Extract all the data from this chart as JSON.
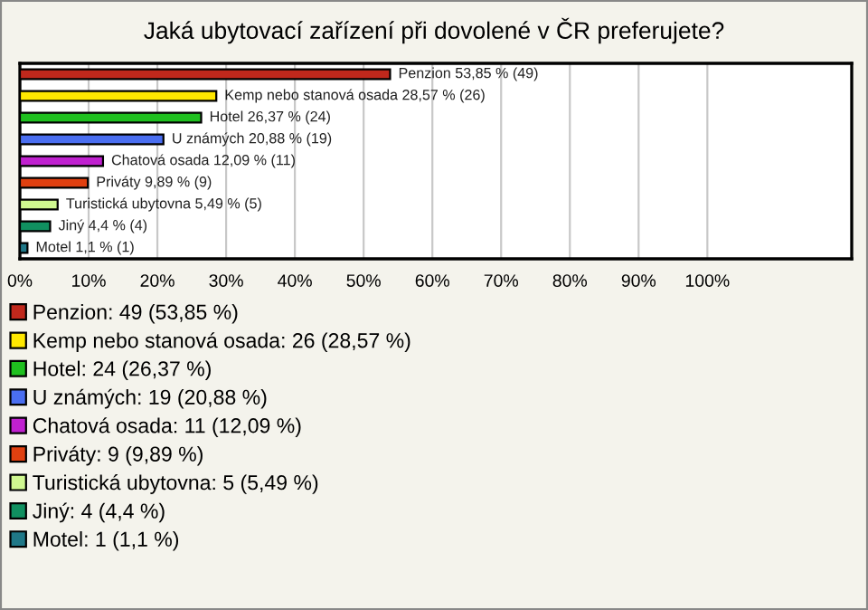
{
  "chart_data": {
    "type": "bar",
    "orientation": "horizontal",
    "title": "Jaká ubytovací zařízení při dovolené v ČR preferujete?",
    "categories": [
      null,
      null,
      null,
      null,
      null,
      null,
      null,
      null,
      null
    ],
    "series": [
      {
        "name": "Penzion: 49 (53,85 %)",
        "color": "#c0281c",
        "values": [
          53.85,
          null,
          null,
          null,
          null,
          null,
          null,
          null,
          null
        ],
        "value_labels": [
          "Penzion 53,85 % (49)",
          null,
          null,
          null,
          null,
          null,
          null,
          null,
          null
        ]
      },
      {
        "name": "Kemp nebo stanová osada: 26 (28,57 %)",
        "color": "#ffe800",
        "values": [
          null,
          28.57,
          null,
          null,
          null,
          null,
          null,
          null,
          null
        ],
        "value_labels": [
          null,
          "Kemp nebo stanová osada 28,57 % (26)",
          null,
          null,
          null,
          null,
          null,
          null,
          null
        ]
      },
      {
        "name": "Hotel: 24 (26,37 %)",
        "color": "#1fc01f",
        "values": [
          null,
          null,
          26.37,
          null,
          null,
          null,
          null,
          null,
          null
        ],
        "value_labels": [
          null,
          null,
          "Hotel 26,37 % (24)",
          null,
          null,
          null,
          null,
          null,
          null
        ]
      },
      {
        "name": "U známých: 19 (20,88 %)",
        "color": "#4a6ef0",
        "values": [
          null,
          null,
          null,
          20.88,
          null,
          null,
          null,
          null,
          null
        ],
        "value_labels": [
          null,
          null,
          null,
          "U známých 20,88 % (19)",
          null,
          null,
          null,
          null,
          null
        ]
      },
      {
        "name": "Chatová osada: 11 (12,09 %)",
        "color": "#c020d0",
        "values": [
          null,
          null,
          null,
          null,
          12.09,
          null,
          null,
          null,
          null
        ],
        "value_labels": [
          null,
          null,
          null,
          null,
          "Chatová osada 12,09 % (11)",
          null,
          null,
          null,
          null
        ]
      },
      {
        "name": "Priváty: 9 (9,89 %)",
        "color": "#e04010",
        "values": [
          null,
          null,
          null,
          null,
          null,
          9.89,
          null,
          null,
          null
        ],
        "value_labels": [
          null,
          null,
          null,
          null,
          null,
          "Priváty 9,89 % (9)",
          null,
          null,
          null
        ]
      },
      {
        "name": "Turistická ubytovna: 5 (5,49 %)",
        "color": "#d0f890",
        "values": [
          null,
          null,
          null,
          null,
          null,
          null,
          5.49,
          null,
          null
        ],
        "value_labels": [
          null,
          null,
          null,
          null,
          null,
          null,
          "Turistická ubytovna 5,49 % (5)",
          null,
          null
        ]
      },
      {
        "name": "Jiný: 4 (4,4 %)",
        "color": "#109060",
        "values": [
          null,
          null,
          null,
          null,
          null,
          null,
          null,
          4.4,
          null
        ],
        "value_labels": [
          null,
          null,
          null,
          null,
          null,
          null,
          null,
          "Jiný 4,4 % (4)",
          null
        ]
      },
      {
        "name": "Motel: 1 (1,1 %)",
        "color": "#207888",
        "values": [
          null,
          null,
          null,
          null,
          null,
          null,
          null,
          null,
          1.1
        ],
        "value_labels": [
          null,
          null,
          null,
          null,
          null,
          null,
          null,
          null,
          "Motel 1,1 % (1)"
        ]
      }
    ],
    "xlim": [
      0,
      121
    ],
    "xticks": [
      {
        "value": 0,
        "label": "0%"
      },
      {
        "value": 10,
        "label": "10%"
      },
      {
        "value": 20,
        "label": "20%"
      },
      {
        "value": 30,
        "label": "30%"
      },
      {
        "value": 40,
        "label": "40%"
      },
      {
        "value": 50,
        "label": "50%"
      },
      {
        "value": 60,
        "label": "60%"
      },
      {
        "value": 70,
        "label": "70%"
      },
      {
        "value": 80,
        "label": "80%"
      },
      {
        "value": 90,
        "label": "90%"
      },
      {
        "value": 100,
        "label": "100%"
      }
    ],
    "grid": "x",
    "legend": "bottom"
  }
}
